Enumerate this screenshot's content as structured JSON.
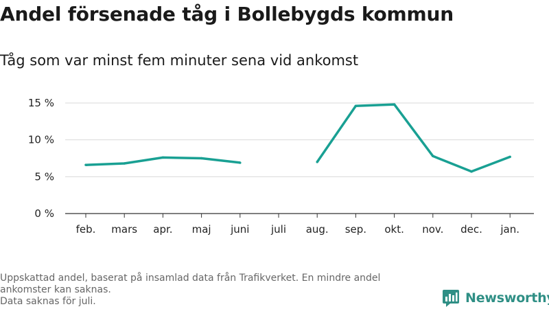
{
  "title": "Andel försenade tåg i Bollebygds kommun",
  "subtitle": "Tåg som var minst fem minuter sena vid ankomst",
  "footnote": {
    "line1": "Uppskattad andel, baserat på insamlad data från Trafikverket. En mindre andel",
    "line2": "ankomster kan saknas.",
    "line3": "Data saknas för juli."
  },
  "brand": {
    "name": "Newsworthy",
    "icon": "newsworthy-logo-icon",
    "color": "#2f8f85"
  },
  "chart_data": {
    "type": "line",
    "categories": [
      "feb.",
      "mars",
      "apr.",
      "maj",
      "juni",
      "juli",
      "aug.",
      "sep.",
      "okt.",
      "nov.",
      "dec.",
      "jan."
    ],
    "series": [
      {
        "values": [
          6.6,
          6.8,
          7.6,
          7.5,
          6.9,
          null,
          7.0,
          14.6,
          14.8,
          7.8,
          5.7,
          7.7
        ],
        "color": "#19a093"
      }
    ],
    "ylim": [
      0,
      15
    ],
    "yticks": [
      0,
      5,
      10,
      15
    ],
    "ytick_labels": [
      "0 %",
      "5 %",
      "10 %",
      "15 %"
    ],
    "grid": true,
    "legend": "none"
  }
}
